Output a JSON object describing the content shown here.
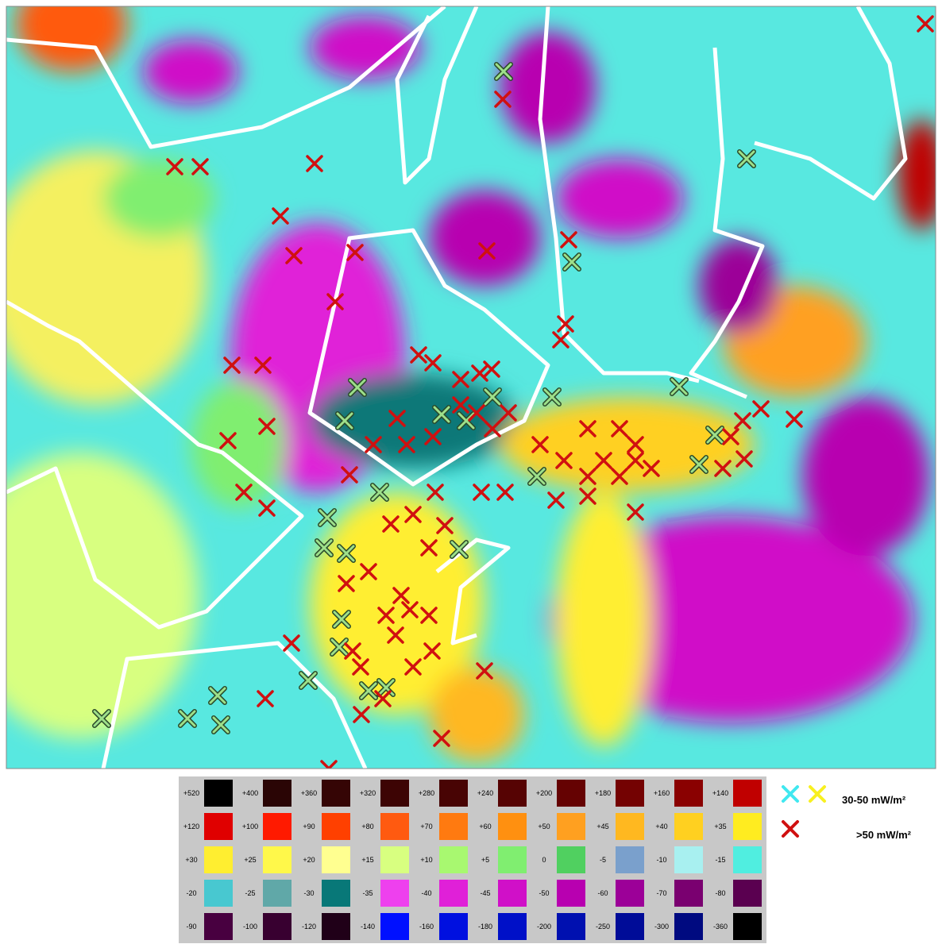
{
  "legend": {
    "rows": [
      [
        {
          "label": "+520",
          "color": "#000000"
        },
        {
          "label": "+400",
          "color": "#2a0505"
        },
        {
          "label": "+360",
          "color": "#350505"
        },
        {
          "label": "+320",
          "color": "#3d0404"
        },
        {
          "label": "+280",
          "color": "#480404"
        },
        {
          "label": "+240",
          "color": "#560303"
        },
        {
          "label": "+200",
          "color": "#650202"
        },
        {
          "label": "+180",
          "color": "#740202"
        },
        {
          "label": "+160",
          "color": "#8a0101"
        },
        {
          "label": "+140",
          "color": "#c00000"
        }
      ],
      [
        {
          "label": "+120",
          "color": "#e00000"
        },
        {
          "label": "+100",
          "color": "#ff1a00"
        },
        {
          "label": "+90",
          "color": "#ff4000"
        },
        {
          "label": "+80",
          "color": "#ff5a10"
        },
        {
          "label": "+70",
          "color": "#ff7a10"
        },
        {
          "label": "+60",
          "color": "#ff9010"
        },
        {
          "label": "+50",
          "color": "#ffa020"
        },
        {
          "label": "+45",
          "color": "#ffb820"
        },
        {
          "label": "+40",
          "color": "#ffd020"
        },
        {
          "label": "+35",
          "color": "#ffec20"
        }
      ],
      [
        {
          "label": "+30",
          "color": "#ffee30"
        },
        {
          "label": "+25",
          "color": "#fff84a"
        },
        {
          "label": "+20",
          "color": "#ffff90"
        },
        {
          "label": "+15",
          "color": "#d8ff80"
        },
        {
          "label": "+10",
          "color": "#a8f870"
        },
        {
          "label": "+5",
          "color": "#80ee70"
        },
        {
          "label": "0",
          "color": "#50d060"
        },
        {
          "label": "-5",
          "color": "#7aa0cc"
        },
        {
          "label": "-10",
          "color": "#a8f0f0"
        },
        {
          "label": "-15",
          "color": "#50eee0"
        }
      ],
      [
        {
          "label": "-20",
          "color": "#48c8d0"
        },
        {
          "label": "-25",
          "color": "#60a8a8"
        },
        {
          "label": "-30",
          "color": "#087878"
        },
        {
          "label": "-35",
          "color": "#ee40ee"
        },
        {
          "label": "-40",
          "color": "#e020d8"
        },
        {
          "label": "-45",
          "color": "#d010c8"
        },
        {
          "label": "-50",
          "color": "#b800b0"
        },
        {
          "label": "-60",
          "color": "#9c0098"
        },
        {
          "label": "-70",
          "color": "#7a0070"
        },
        {
          "label": "-80",
          "color": "#5a0050"
        }
      ],
      [
        {
          "label": "-90",
          "color": "#480040"
        },
        {
          "label": "-100",
          "color": "#380030"
        },
        {
          "label": "-120",
          "color": "#200018"
        },
        {
          "label": "-140",
          "color": "#0010ff"
        },
        {
          "label": "-160",
          "color": "#0010e0"
        },
        {
          "label": "-180",
          "color": "#0010c8"
        },
        {
          "label": "-200",
          "color": "#0010b0"
        },
        {
          "label": "-250",
          "color": "#000c98"
        },
        {
          "label": "-300",
          "color": "#000a80"
        },
        {
          "label": "-360",
          "color": "#000000"
        }
      ]
    ]
  },
  "key": {
    "low_label": "30-50 mW/m²",
    "high_label": ">50 mW/m²"
  }
}
